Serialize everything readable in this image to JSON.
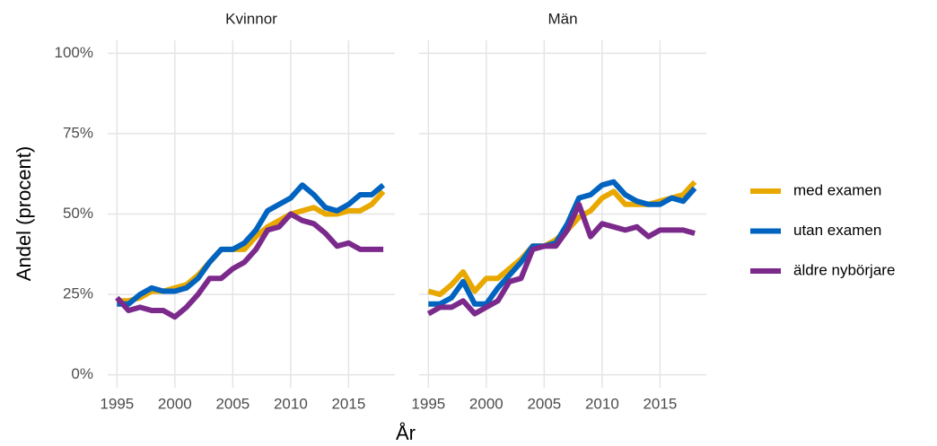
{
  "chart_data": [
    {
      "type": "line",
      "title": "Kvinnor",
      "x": [
        1995,
        1996,
        1997,
        1998,
        1999,
        2000,
        2001,
        2002,
        2003,
        2004,
        2005,
        2006,
        2007,
        2008,
        2009,
        2010,
        2011,
        2012,
        2013,
        2014,
        2015,
        2016,
        2017,
        2018
      ],
      "xlim": [
        1994.2,
        2019
      ],
      "xticks": [
        1995,
        2000,
        2005,
        2010,
        2015
      ],
      "ylim": [
        -4,
        104
      ],
      "yticks": [
        {
          "value": 0,
          "label": "0%"
        },
        {
          "value": 25,
          "label": "25%"
        },
        {
          "value": 50,
          "label": "50%"
        },
        {
          "value": 75,
          "label": "75%"
        },
        {
          "value": 100,
          "label": "100%"
        }
      ],
      "grid": true,
      "series": [
        {
          "name": "med examen",
          "color": "#e9a800",
          "values": [
            23,
            23,
            24,
            26,
            26,
            27,
            28,
            31,
            35,
            39,
            39,
            39,
            43,
            46,
            48,
            50,
            51,
            52,
            50,
            50,
            51,
            51,
            53,
            57
          ]
        },
        {
          "name": "utan examen",
          "color": "#0063bf",
          "values": [
            22,
            22,
            25,
            27,
            26,
            26,
            27,
            30,
            35,
            39,
            39,
            41,
            45,
            51,
            53,
            55,
            59,
            56,
            52,
            51,
            53,
            56,
            56,
            59
          ]
        },
        {
          "name": "äldre nybörjare",
          "color": "#7b2a8c",
          "values": [
            24,
            20,
            21,
            20,
            20,
            18,
            21,
            25,
            30,
            30,
            33,
            35,
            39,
            45,
            46,
            50,
            48,
            47,
            44,
            40,
            41,
            39,
            39,
            39
          ]
        }
      ]
    },
    {
      "type": "line",
      "title": "Män",
      "x": [
        1995,
        1996,
        1997,
        1998,
        1999,
        2000,
        2001,
        2002,
        2003,
        2004,
        2005,
        2006,
        2007,
        2008,
        2009,
        2010,
        2011,
        2012,
        2013,
        2014,
        2015,
        2016,
        2017,
        2018
      ],
      "xlim": [
        1994.2,
        2019
      ],
      "xticks": [
        1995,
        2000,
        2005,
        2010,
        2015
      ],
      "grid": true,
      "series": [
        {
          "name": "med examen",
          "color": "#e9a800",
          "values": [
            26,
            25,
            28,
            32,
            26,
            30,
            30,
            33,
            36,
            40,
            40,
            42,
            45,
            49,
            51,
            55,
            57,
            53,
            53,
            53,
            54,
            55,
            56,
            60
          ]
        },
        {
          "name": "utan examen",
          "color": "#0063bf",
          "values": [
            22,
            22,
            24,
            29,
            22,
            22,
            27,
            31,
            35,
            40,
            40,
            41,
            47,
            55,
            56,
            59,
            60,
            56,
            54,
            53,
            53,
            55,
            54,
            58
          ]
        },
        {
          "name": "äldre nybörjare",
          "color": "#7b2a8c",
          "values": [
            19,
            21,
            21,
            23,
            19,
            21,
            23,
            29,
            30,
            39,
            40,
            40,
            45,
            53,
            43,
            47,
            46,
            45,
            46,
            43,
            45,
            45,
            45,
            44
          ]
        }
      ]
    }
  ],
  "xlabel": "År",
  "ylabel": "Andel (procent)"
}
